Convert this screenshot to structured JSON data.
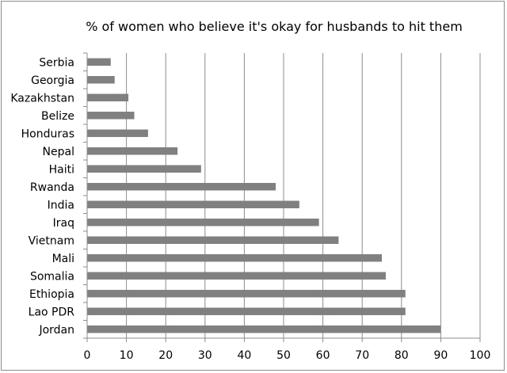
{
  "chart_data": {
    "type": "bar",
    "orientation": "horizontal",
    "title": "% of women who believe it's okay for husbands to hit them",
    "xlabel": "",
    "ylabel": "",
    "categories": [
      "Serbia",
      "Georgia",
      "Kazakhstan",
      "Belize",
      "Honduras",
      "Nepal",
      "Haiti",
      "Rwanda",
      "India",
      "Iraq",
      "Vietnam",
      "Mali",
      "Somalia",
      "Ethiopia",
      "Lao PDR",
      "Jordan"
    ],
    "values": [
      6,
      7,
      10.5,
      12,
      15.5,
      23,
      29,
      48,
      54,
      59,
      64,
      75,
      76,
      81,
      81,
      90
    ],
    "xlim": [
      0,
      100
    ],
    "xticks": [
      0,
      10,
      20,
      30,
      40,
      50,
      60,
      70,
      80,
      90,
      100
    ],
    "grid": true,
    "legend": "none",
    "colors": {
      "bar": "#808080",
      "grid": "#8c8c8c",
      "axis": "#8c8c8c"
    }
  }
}
